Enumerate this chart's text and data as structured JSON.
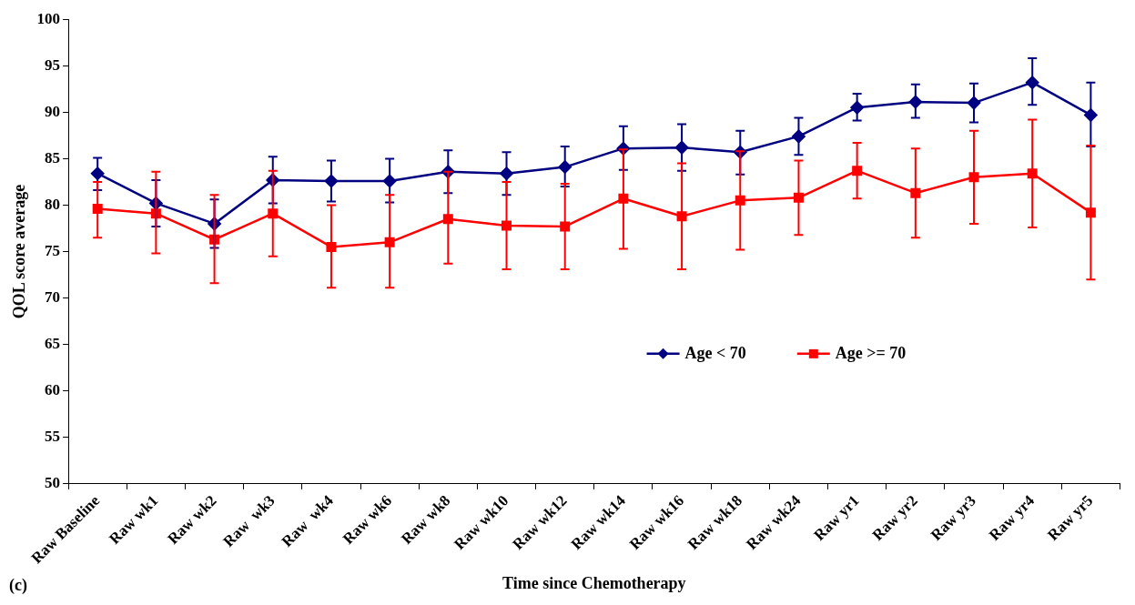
{
  "chart_data": {
    "type": "line",
    "xlabel": "Time since Chemotherapy",
    "ylabel": "QOL score average",
    "categories": [
      "Raw Baseline",
      "Raw wk1",
      "Raw wk2",
      "Raw  wk3",
      "Raw  wk4",
      "Raw wk6",
      "Raw wk8",
      "Raw wk10",
      "Raw wk12",
      "Raw wk14",
      "Raw wk16",
      "Raw wk18",
      "Raw wk24",
      "Raw yr1",
      "Raw yr2",
      "Raw yr3",
      "Raw yr4",
      "Raw yr5"
    ],
    "series": [
      {
        "name": "Age < 70",
        "color": "#000080",
        "marker": "diamond",
        "values": [
          83.4,
          80.2,
          78.0,
          82.7,
          82.6,
          82.6,
          83.6,
          83.4,
          84.1,
          86.1,
          86.2,
          85.7,
          87.4,
          90.5,
          91.1,
          91.0,
          93.2,
          89.7
        ],
        "errors": [
          [
            81.6,
            85.1
          ],
          [
            77.7,
            82.7
          ],
          [
            75.4,
            80.6
          ],
          [
            80.2,
            85.2
          ],
          [
            80.4,
            84.8
          ],
          [
            80.3,
            85.0
          ],
          [
            81.3,
            85.9
          ],
          [
            81.1,
            85.7
          ],
          [
            82.0,
            86.3
          ],
          [
            83.8,
            88.5
          ],
          [
            83.7,
            88.7
          ],
          [
            83.3,
            88.0
          ],
          [
            85.4,
            89.4
          ],
          [
            89.1,
            92.0
          ],
          [
            89.4,
            93.0
          ],
          [
            88.9,
            93.1
          ],
          [
            90.8,
            95.8
          ],
          [
            86.3,
            93.2
          ]
        ]
      },
      {
        "name": "Age >= 70",
        "color": "#ff0000",
        "marker": "square",
        "values": [
          79.6,
          79.1,
          76.3,
          79.1,
          75.5,
          76.0,
          78.5,
          77.8,
          77.7,
          80.7,
          78.8,
          80.5,
          80.8,
          83.7,
          81.3,
          83.0,
          83.4,
          79.2
        ],
        "errors": [
          [
            76.5,
            82.5
          ],
          [
            74.8,
            83.6
          ],
          [
            71.6,
            81.1
          ],
          [
            74.5,
            83.7
          ],
          [
            71.1,
            80.0
          ],
          [
            71.1,
            81.1
          ],
          [
            73.7,
            83.6
          ],
          [
            73.1,
            82.5
          ],
          [
            73.1,
            82.3
          ],
          [
            75.3,
            86.0
          ],
          [
            73.1,
            84.5
          ],
          [
            75.2,
            85.8
          ],
          [
            76.8,
            84.8
          ],
          [
            80.7,
            86.7
          ],
          [
            76.5,
            86.1
          ],
          [
            78.0,
            88.0
          ],
          [
            77.6,
            89.2
          ],
          [
            72.0,
            86.4
          ]
        ]
      }
    ],
    "ylim": [
      50,
      100
    ],
    "yticks": [
      50,
      55,
      60,
      65,
      70,
      75,
      80,
      85,
      90,
      95,
      100
    ],
    "grid": false,
    "legend": "right",
    "line_style": "solid",
    "annotations": [
      "(c)"
    ]
  }
}
